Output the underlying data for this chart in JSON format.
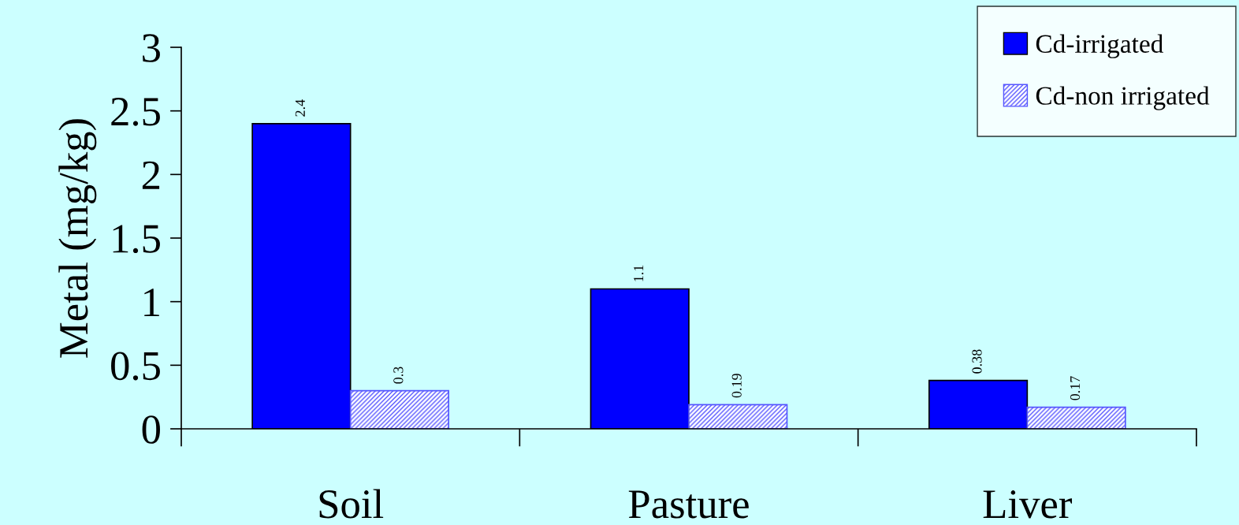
{
  "chart_data": {
    "type": "bar",
    "ylabel": "Metal (mg/kg)",
    "categories": [
      "Soil",
      "Pasture",
      "Liver"
    ],
    "series": [
      {
        "name": "Cd-irrigated",
        "color": "#0000ff",
        "values": [
          2.4,
          1.1,
          0.38
        ]
      },
      {
        "name": "Cd-non irrigated",
        "color": "#5555ff",
        "values": [
          0.3,
          0.19,
          0.17
        ]
      }
    ],
    "ylim": [
      0,
      3
    ],
    "yticks": [
      0,
      0.5,
      1,
      1.5,
      2,
      2.5,
      3
    ],
    "data_labels": true,
    "legend": "top right",
    "grid": false
  }
}
